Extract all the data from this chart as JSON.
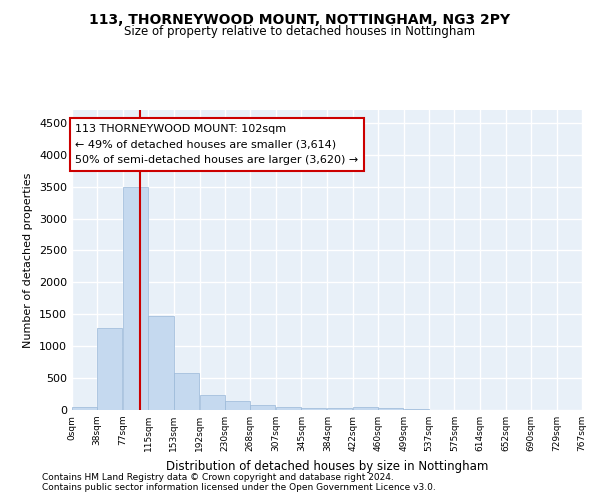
{
  "title1": "113, THORNEYWOOD MOUNT, NOTTINGHAM, NG3 2PY",
  "title2": "Size of property relative to detached houses in Nottingham",
  "xlabel": "Distribution of detached houses by size in Nottingham",
  "ylabel": "Number of detached properties",
  "bar_color": "#c5d9ef",
  "bar_edge_color": "#9ab8d8",
  "background_color": "#e8f0f8",
  "grid_color": "#ffffff",
  "bin_edges": [
    0,
    38,
    77,
    115,
    153,
    192,
    230,
    268,
    307,
    345,
    384,
    422,
    460,
    499,
    537,
    575,
    614,
    652,
    690,
    729,
    767
  ],
  "bar_heights": [
    50,
    1280,
    3500,
    1475,
    580,
    240,
    140,
    80,
    50,
    30,
    30,
    50,
    30,
    10,
    5,
    5,
    5,
    3,
    3,
    3
  ],
  "property_sqm": 102,
  "red_line_color": "#cc0000",
  "annotation_text_line1": "113 THORNEYWOOD MOUNT: 102sqm",
  "annotation_text_line2": "← 49% of detached houses are smaller (3,614)",
  "annotation_text_line3": "50% of semi-detached houses are larger (3,620) →",
  "annotation_box_color": "#ffffff",
  "annotation_box_edge": "#cc0000",
  "ylim": [
    0,
    4700
  ],
  "yticks": [
    0,
    500,
    1000,
    1500,
    2000,
    2500,
    3000,
    3500,
    4000,
    4500
  ],
  "footnote1": "Contains HM Land Registry data © Crown copyright and database right 2024.",
  "footnote2": "Contains public sector information licensed under the Open Government Licence v3.0."
}
